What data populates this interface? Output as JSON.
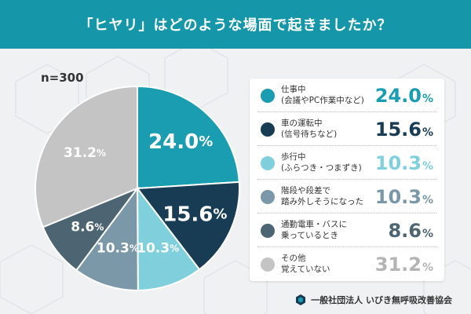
{
  "header": {
    "title": "「ヒヤリ」はどのような場面で起きましたか？"
  },
  "sample_size": "n=300",
  "footer": {
    "organization": "一般社団法人 いびき無呼吸改善協会",
    "logo_icon": "hexagon-logo-icon"
  },
  "chart_data": {
    "type": "pie",
    "title": "「ヒヤリ」はどのような場面で起きましたか？",
    "unit": "%",
    "start_angle": "12 o'clock",
    "direction": "clockwise",
    "legend_position": "right",
    "categories": [
      "仕事中\n(会議やPC作業中など)",
      "車の運転中\n(信号待ちなど)",
      "歩行中\n(ふらつき・つまずき)",
      "階段や段差で\n踏み外しそうになった",
      "通勤電車・バスに\n乗っているとき",
      "その他\n覚えていない"
    ],
    "values": [
      24.0,
      15.6,
      10.3,
      10.3,
      8.6,
      31.2
    ],
    "value_labels": [
      "24.0",
      "15.6",
      "10.3",
      "10.3",
      "8.6",
      "31.2"
    ],
    "colors": [
      "#1a9db0",
      "#183c54",
      "#7fd0dc",
      "#7a98a8",
      "#4d6573",
      "#c4c4c4"
    ],
    "label_colors": [
      "#ffffff",
      "#ffffff",
      "#ffffff",
      "#ffffff",
      "#ffffff",
      "#ffffff"
    ],
    "legend_value_colors": [
      "#1a9db0",
      "#183c54",
      "#7fd0dc",
      "#7a98a8",
      "#4d6573",
      "#b4b4b4"
    ]
  }
}
